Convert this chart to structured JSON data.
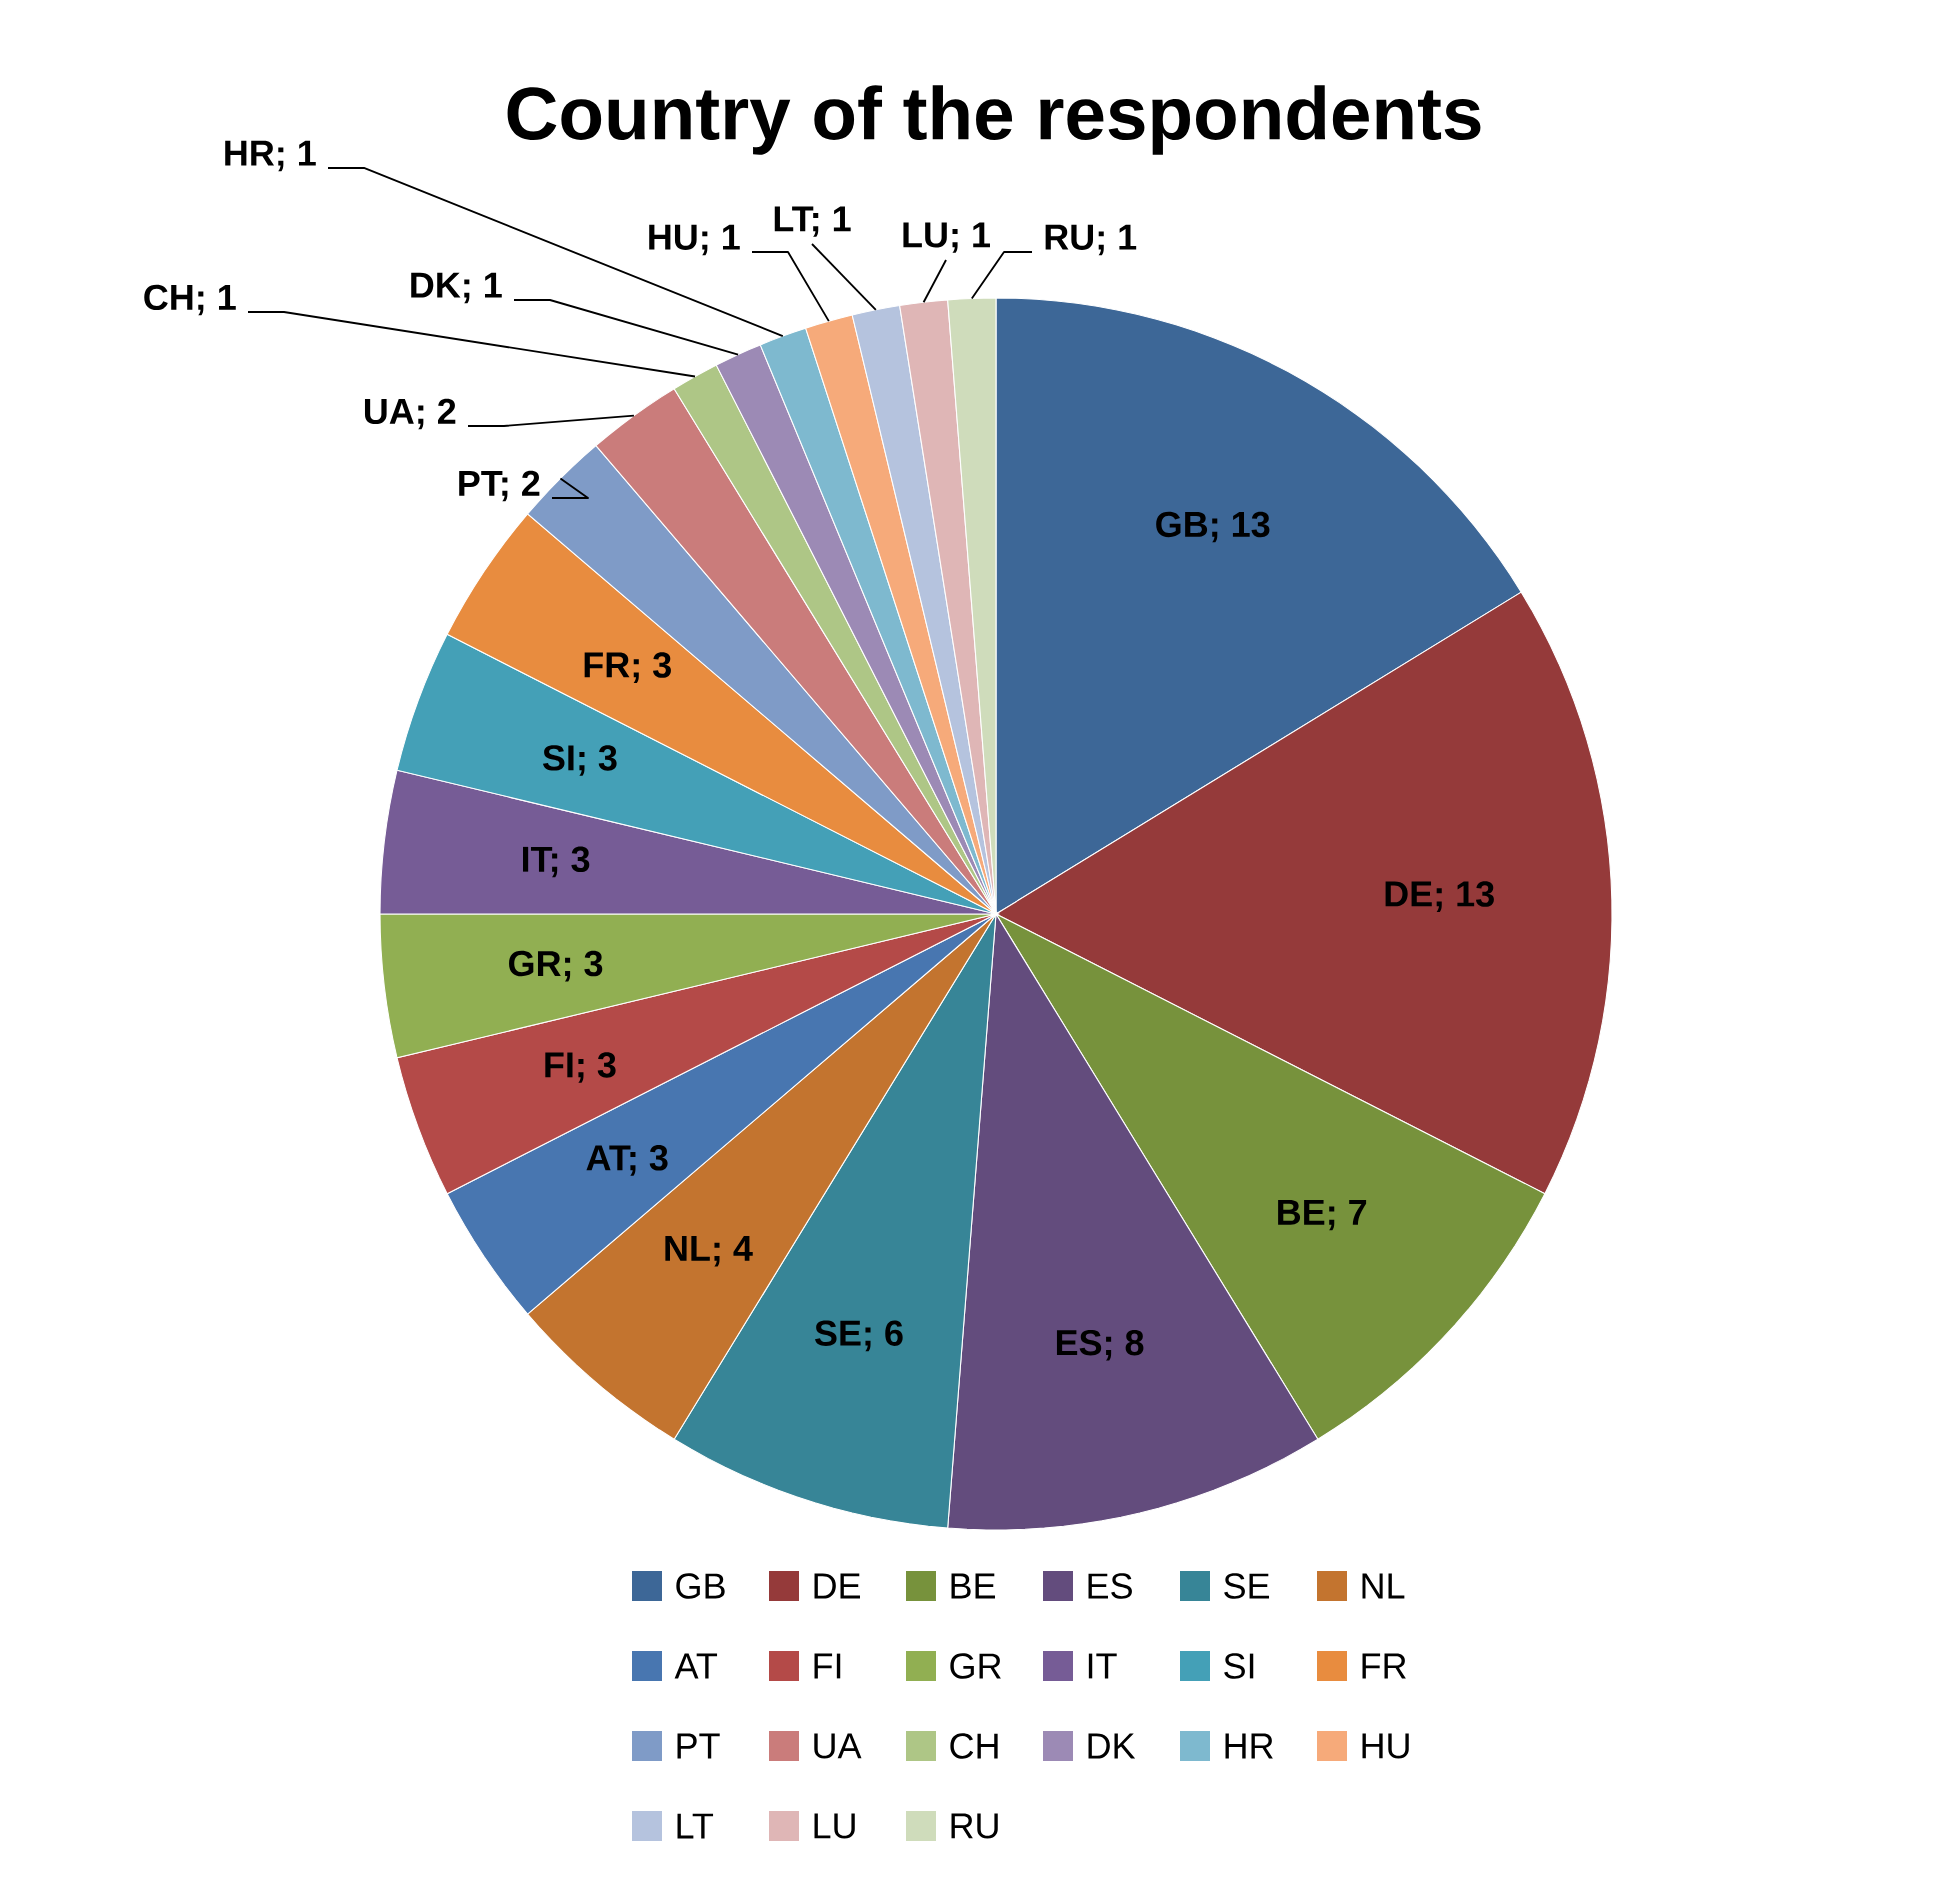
{
  "chart_data": {
    "type": "pie",
    "title": "Country of the respondents",
    "categories": [
      "GB",
      "DE",
      "BE",
      "ES",
      "SE",
      "NL",
      "AT",
      "FI",
      "GR",
      "IT",
      "SI",
      "FR",
      "PT",
      "UA",
      "CH",
      "DK",
      "HR",
      "HU",
      "LT",
      "LU",
      "RU"
    ],
    "values": [
      13,
      13,
      7,
      8,
      6,
      4,
      3,
      3,
      3,
      3,
      3,
      3,
      2,
      2,
      1,
      1,
      1,
      1,
      1,
      1,
      1
    ],
    "colors": [
      "#3d6797",
      "#953a3a",
      "#77923c",
      "#634c7d",
      "#378597",
      "#c3742f",
      "#4876b0",
      "#b44a48",
      "#91af52",
      "#765c96",
      "#44a0b7",
      "#e88c3f",
      "#7f9bc7",
      "#ca7c7b",
      "#aec686",
      "#9c8ab5",
      "#7eb9cf",
      "#f6aa7a",
      "#b5c3de",
      "#dfb6b6",
      "#cfdcbb"
    ],
    "value_labels": [
      "GB; 13",
      "DE; 13",
      "BE; 7",
      "ES; 8",
      "SE; 6",
      "NL; 4",
      "AT; 3",
      "FI; 3",
      "GR; 3",
      "IT; 3",
      "SI; 3",
      "FR; 3",
      "PT; 2",
      "UA; 2",
      "CH; 1",
      "DK; 1",
      "HR; 1",
      "HU; 1",
      "LT; 1",
      "LU; 1",
      "RU; 1"
    ],
    "legend": "bottom"
  }
}
